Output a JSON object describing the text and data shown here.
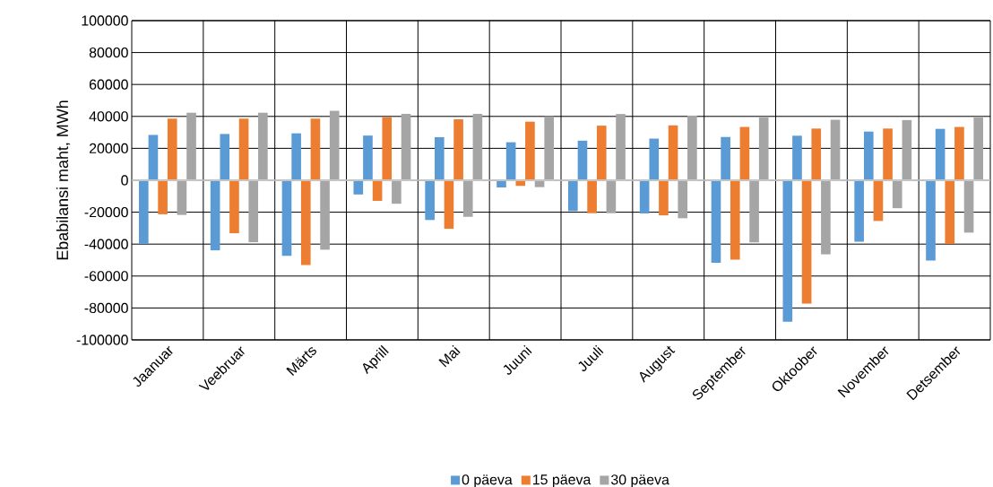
{
  "chart_data": {
    "type": "bar",
    "ylabel": "Ebabilansi maht, MWh",
    "categories": [
      "Jaanuar",
      "Veebruar",
      "Märts",
      "Aprill",
      "Mai",
      "Juuni",
      "Juuli",
      "August",
      "September",
      "Oktoober",
      "November",
      "Detsember"
    ],
    "series": [
      {
        "color": "#5b9bd5",
        "values": [
          -39800,
          -43900,
          -47300,
          -8900,
          -24900,
          -4500,
          -19300,
          -20800,
          -51700,
          -88600,
          -38500,
          -50300
        ]
      },
      {
        "name": "0 päeva",
        "color": "#5b9bd5",
        "values": [
          28400,
          29000,
          29400,
          28000,
          27000,
          23800,
          24800,
          26100,
          27100,
          27900,
          30500,
          32200
        ]
      },
      {
        "color": "#ed7d31",
        "values": [
          -21300,
          -33200,
          -53100,
          -12900,
          -30400,
          -3500,
          -20600,
          -22000,
          -49700,
          -77200,
          -25500,
          -39900
        ]
      },
      {
        "name": "15 päeva",
        "color": "#ed7d31",
        "values": [
          38600,
          38600,
          38600,
          39600,
          38200,
          36700,
          34200,
          34400,
          33400,
          32400,
          32400,
          33400
        ]
      },
      {
        "color": "#a5a5a5",
        "values": [
          -21700,
          -38800,
          -43500,
          -14700,
          -22900,
          -4300,
          -20600,
          -23800,
          -38900,
          -46400,
          -17500,
          -32800
        ]
      },
      {
        "name": "30 päeva",
        "color": "#a5a5a5",
        "values": [
          42300,
          42300,
          43500,
          41600,
          41600,
          40100,
          41500,
          40500,
          39300,
          37900,
          37700,
          39300
        ]
      }
    ],
    "ylim": [
      -100000,
      100000
    ],
    "yticks": [
      -100000,
      -80000,
      -60000,
      -40000,
      -20000,
      0,
      20000,
      40000,
      60000,
      80000,
      100000
    ],
    "grid": true,
    "legend": "bottom"
  }
}
